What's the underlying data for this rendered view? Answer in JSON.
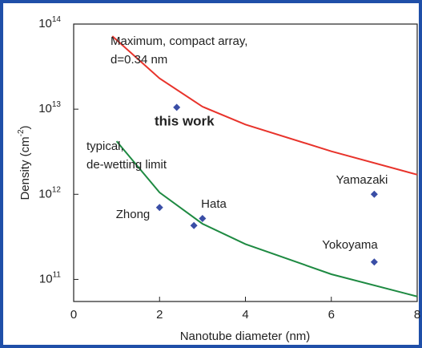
{
  "chart_data": {
    "type": "line",
    "x_label": "Nanotube diameter (nm)",
    "y_label": [
      "Density (cm",
      "-2",
      ")"
    ],
    "xlim": [
      0,
      8
    ],
    "xticks": [
      0,
      2,
      4,
      6,
      8
    ],
    "ylim": [
      55000000000.0,
      100000000000000.0
    ],
    "log_y": true,
    "yticks": [
      {
        "value": 100000000000.0,
        "label": "10",
        "exponent": "11"
      },
      {
        "value": 1000000000000.0,
        "label": "10",
        "exponent": "12"
      },
      {
        "value": 10000000000000.0,
        "label": "10",
        "exponent": "13"
      },
      {
        "value": 100000000000000.0,
        "label": "10",
        "exponent": "14"
      }
    ],
    "series": [
      {
        "name": "Maximum, compact array, d=0.34 nm",
        "lines": [
          "Maximum, compact array,",
          "d=0.34 nm"
        ],
        "color": "#e8332b",
        "label_color": "#e0307a",
        "x": [
          0.9,
          1,
          2,
          3,
          4,
          6,
          8
        ],
        "values": [
          72000000000000.0,
          65000000000000.0,
          23000000000000.0,
          10700000000000.0,
          6600000000000.0,
          3200000000000.0,
          1700000000000.0
        ]
      },
      {
        "name": "typical, de-wetting limit",
        "lines": [
          "typical,",
          "de-wetting limit"
        ],
        "color": "#1e8a42",
        "label_color": "#22a045",
        "x": [
          1,
          2,
          3,
          4,
          6,
          8
        ],
        "values": [
          4200000000000.0,
          1050000000000.0,
          450000000000.0,
          260000000000.0,
          115000000000.0,
          63000000000.0
        ]
      }
    ],
    "points": {
      "color": "#3a4ea6",
      "x": [
        2.4,
        7,
        7,
        2,
        3,
        2.8
      ],
      "values": [
        10500000000000.0,
        1000000000000.0,
        160000000000.0,
        700000000000.0,
        520000000000.0,
        430000000000.0
      ]
    },
    "annotations": [
      "this work",
      "Yamazaki",
      "Yokoyama",
      "Zhong",
      "Hata"
    ]
  }
}
